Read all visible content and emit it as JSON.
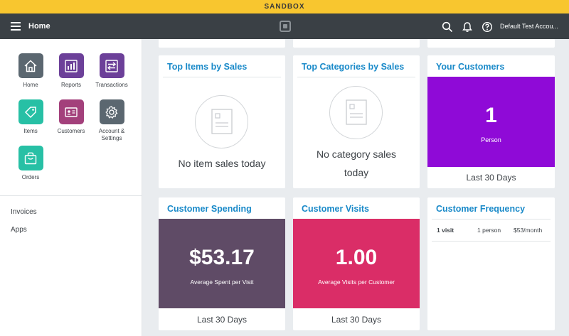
{
  "banner": {
    "label": "SANDBOX"
  },
  "topbar": {
    "title": "Home",
    "account": "Default Test Accou..."
  },
  "sidebar": {
    "apps": [
      {
        "label": "Home",
        "icon": "home-icon",
        "color": "#5b6770"
      },
      {
        "label": "Reports",
        "icon": "bar-chart-icon",
        "color": "#6c4099"
      },
      {
        "label": "Transactions",
        "icon": "transfer-icon",
        "color": "#6c4099"
      },
      {
        "label": "Items",
        "icon": "tag-icon",
        "color": "#27c0a5"
      },
      {
        "label": "Customers",
        "icon": "id-card-icon",
        "color": "#a3407b"
      },
      {
        "label": "Account & Settings",
        "icon": "gear-icon",
        "color": "#5b6770"
      },
      {
        "label": "Orders",
        "icon": "shopping-bag-icon",
        "color": "#27c0a5"
      }
    ],
    "links": [
      "Invoices",
      "Apps"
    ]
  },
  "cards": {
    "top_items": {
      "title": "Top Items by Sales",
      "empty": "No item sales today"
    },
    "top_categories": {
      "title": "Top Categories by Sales",
      "empty_line1": "No category sales",
      "empty_line2": "today"
    },
    "your_customers": {
      "title": "Your Customers",
      "value": "1",
      "unit": "Person",
      "period": "Last 30 Days",
      "color": "#8f0ad7"
    },
    "customer_spending": {
      "title": "Customer Spending",
      "value": "$53.17",
      "caption": "Average Spent per Visit",
      "period": "Last 30 Days",
      "color": "#5f4b66"
    },
    "customer_visits": {
      "title": "Customer Visits",
      "value": "1.00",
      "caption": "Average Visits per Customer",
      "period": "Last 30 Days",
      "color": "#da2d67"
    },
    "customer_frequency": {
      "title": "Customer Frequency",
      "row": {
        "visits": "1 visit",
        "people": "1 person",
        "amount": "$53/month"
      }
    }
  }
}
